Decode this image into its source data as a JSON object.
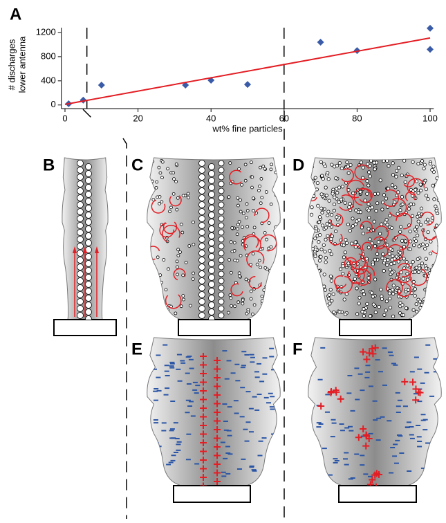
{
  "chart_data": {
    "type": "scatter",
    "panel_label": "A",
    "xlabel": "wt% fine particles",
    "ylabel": [
      "# discharges",
      "lower antenna"
    ],
    "x": [
      1,
      5,
      10,
      33,
      40,
      50,
      70,
      80,
      100,
      100
    ],
    "values": [
      20,
      80,
      330,
      330,
      410,
      340,
      1040,
      900,
      1270,
      920
    ],
    "color": "#3a5ba8",
    "fit": {
      "x": [
        0,
        100
      ],
      "values": [
        10,
        1110
      ],
      "color": "#e31e24"
    },
    "vlines": [
      6,
      60
    ],
    "xlim": [
      -1,
      101
    ],
    "ylim": [
      -60,
      1280
    ],
    "xticks": [
      0,
      20,
      40,
      60,
      80,
      100
    ],
    "yticks": [
      0,
      400,
      800,
      1200
    ]
  },
  "panel_labels": [
    "B",
    "C",
    "D",
    "E",
    "F"
  ]
}
